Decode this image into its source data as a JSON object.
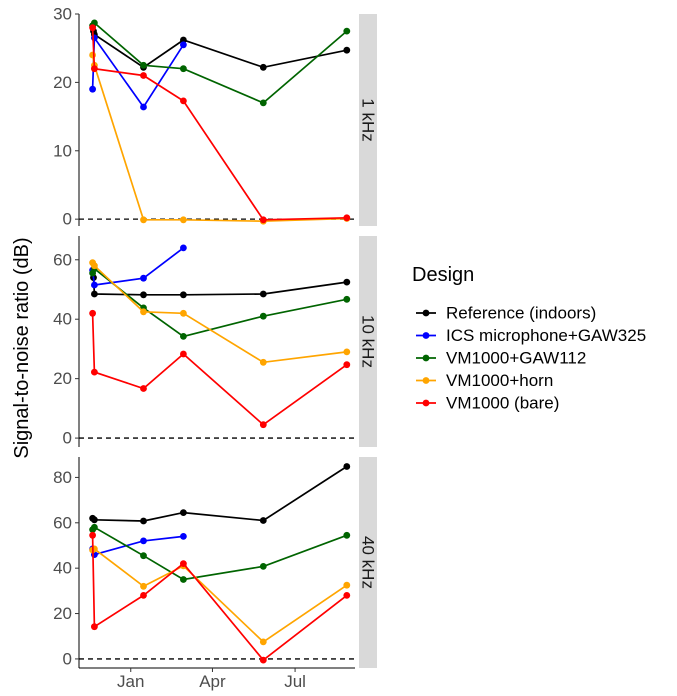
{
  "chart_data": {
    "type": "line",
    "ylabel": "Signal-to-noise ratio (dB)",
    "xlabel": "",
    "x_ticks": [
      {
        "label": "Jan",
        "date": "2022-01-01"
      },
      {
        "label": "Apr",
        "date": "2022-04-01"
      },
      {
        "label": "Jul",
        "date": "2022-07-01"
      }
    ],
    "xlim": [
      "2021-11-05",
      "2022-09-05"
    ],
    "legend": {
      "title": "Design",
      "entries": [
        {
          "label": "Reference (indoors)",
          "color": "#000000"
        },
        {
          "label": "ICS microphone+GAW325",
          "color": "#0000ff"
        },
        {
          "label": "VM1000+GAW112",
          "color": "#006400"
        },
        {
          "label": "VM1000+horn",
          "color": "#ffa500"
        },
        {
          "label": "VM1000 (bare)",
          "color": "#ff0000"
        }
      ]
    },
    "reference_line": {
      "y": 0,
      "style": "dashed"
    },
    "panels": [
      {
        "strip": "1 kHz",
        "ylim": [
          -1,
          30
        ],
        "y_ticks": [
          0,
          10,
          20,
          30
        ],
        "series": [
          {
            "name": "Reference (indoors)",
            "color": "#000000",
            "points": [
              [
                "2021-11-21",
                27.5
              ],
              [
                "2021-11-22",
                27.0
              ],
              [
                "2022-01-15",
                22.2
              ],
              [
                "2022-02-28",
                26.2
              ],
              [
                "2022-05-27",
                22.2
              ],
              [
                "2022-08-27",
                24.7
              ]
            ]
          },
          {
            "name": "ICS microphone+GAW325",
            "color": "#0000ff",
            "points": [
              [
                "2021-11-20",
                19.0
              ],
              [
                "2021-11-22",
                26.5
              ],
              [
                "2022-01-15",
                16.4
              ],
              [
                "2022-02-28",
                25.5
              ]
            ]
          },
          {
            "name": "VM1000+GAW112",
            "color": "#006400",
            "points": [
              [
                "2021-11-20",
                28.3
              ],
              [
                "2021-11-22",
                28.7
              ],
              [
                "2022-01-15",
                22.5
              ],
              [
                "2022-02-28",
                22.0
              ],
              [
                "2022-05-27",
                17.0
              ],
              [
                "2022-08-27",
                27.5
              ]
            ]
          },
          {
            "name": "VM1000+horn",
            "color": "#ffa500",
            "points": [
              [
                "2021-11-20",
                24.0
              ],
              [
                "2021-11-22",
                22.5
              ],
              [
                "2022-01-15",
                -0.1
              ],
              [
                "2022-02-28",
                -0.1
              ],
              [
                "2022-05-27",
                -0.3
              ],
              [
                "2022-08-27",
                0.1
              ]
            ]
          },
          {
            "name": "VM1000 (bare)",
            "color": "#ff0000",
            "points": [
              [
                "2021-11-20",
                28.0
              ],
              [
                "2021-11-22",
                22.0
              ],
              [
                "2022-01-15",
                21.0
              ],
              [
                "2022-02-28",
                17.3
              ],
              [
                "2022-05-27",
                -0.1
              ],
              [
                "2022-08-27",
                0.2
              ]
            ]
          }
        ]
      },
      {
        "strip": "10 kHz",
        "ylim": [
          -3,
          68
        ],
        "y_ticks": [
          0,
          20,
          40,
          60
        ],
        "series": [
          {
            "name": "Reference (indoors)",
            "color": "#000000",
            "points": [
              [
                "2021-11-21",
                54.0
              ],
              [
                "2021-11-22",
                48.5
              ],
              [
                "2022-01-15",
                48.2
              ],
              [
                "2022-02-28",
                48.2
              ],
              [
                "2022-05-27",
                48.5
              ],
              [
                "2022-08-27",
                52.5
              ]
            ]
          },
          {
            "name": "ICS microphone+GAW325",
            "color": "#0000ff",
            "points": [
              [
                "2021-11-20",
                56.5
              ],
              [
                "2021-11-22",
                51.5
              ],
              [
                "2022-01-15",
                53.8
              ],
              [
                "2022-02-28",
                64.0
              ]
            ]
          },
          {
            "name": "VM1000+GAW112",
            "color": "#006400",
            "points": [
              [
                "2021-11-20",
                55.5
              ],
              [
                "2021-11-22",
                57.0
              ],
              [
                "2022-01-15",
                43.8
              ],
              [
                "2022-02-28",
                34.2
              ],
              [
                "2022-05-27",
                41.0
              ],
              [
                "2022-08-27",
                46.7
              ]
            ]
          },
          {
            "name": "VM1000+horn",
            "color": "#ffa500",
            "points": [
              [
                "2021-11-20",
                59.0
              ],
              [
                "2021-11-22",
                58.0
              ],
              [
                "2022-01-15",
                42.5
              ],
              [
                "2022-02-28",
                42.0
              ],
              [
                "2022-05-27",
                25.5
              ],
              [
                "2022-08-27",
                29.0
              ]
            ]
          },
          {
            "name": "VM1000 (bare)",
            "color": "#ff0000",
            "points": [
              [
                "2021-11-20",
                42.0
              ],
              [
                "2021-11-22",
                22.2
              ],
              [
                "2022-01-15",
                16.7
              ],
              [
                "2022-02-28",
                28.3
              ],
              [
                "2022-05-27",
                4.5
              ],
              [
                "2022-08-27",
                24.7
              ]
            ]
          }
        ]
      },
      {
        "strip": "40 kHz",
        "ylim": [
          -4,
          89
        ],
        "y_ticks": [
          0,
          20,
          40,
          60,
          80
        ],
        "series": [
          {
            "name": "Reference (indoors)",
            "color": "#000000",
            "points": [
              [
                "2021-11-20",
                62.0
              ],
              [
                "2021-11-22",
                61.3
              ],
              [
                "2022-01-15",
                60.8
              ],
              [
                "2022-02-28",
                64.5
              ],
              [
                "2022-05-27",
                61.0
              ],
              [
                "2022-08-27",
                84.8
              ]
            ]
          },
          {
            "name": "ICS microphone+GAW325",
            "color": "#0000ff",
            "points": [
              [
                "2021-11-20",
                48.5
              ],
              [
                "2021-11-22",
                46.0
              ],
              [
                "2022-01-15",
                52.0
              ],
              [
                "2022-02-28",
                54.0
              ]
            ]
          },
          {
            "name": "VM1000+GAW112",
            "color": "#006400",
            "points": [
              [
                "2021-11-20",
                57.0
              ],
              [
                "2021-11-22",
                58.0
              ],
              [
                "2022-01-15",
                45.5
              ],
              [
                "2022-02-28",
                35.0
              ],
              [
                "2022-05-27",
                40.8
              ],
              [
                "2022-08-27",
                54.5
              ]
            ]
          },
          {
            "name": "VM1000+horn",
            "color": "#ffa500",
            "points": [
              [
                "2021-11-20",
                48.0
              ],
              [
                "2021-11-22",
                48.5
              ],
              [
                "2022-01-15",
                32.0
              ],
              [
                "2022-02-28",
                41.0
              ],
              [
                "2022-05-27",
                7.5
              ],
              [
                "2022-08-27",
                32.5
              ]
            ]
          },
          {
            "name": "VM1000 (bare)",
            "color": "#ff0000",
            "points": [
              [
                "2021-11-20",
                54.5
              ],
              [
                "2021-11-22",
                14.2
              ],
              [
                "2022-01-15",
                28.0
              ],
              [
                "2022-02-28",
                42.0
              ],
              [
                "2022-05-27",
                -0.5
              ],
              [
                "2022-08-27",
                28.0
              ]
            ]
          }
        ]
      }
    ]
  }
}
